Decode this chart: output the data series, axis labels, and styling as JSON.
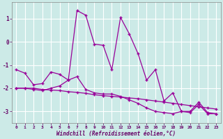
{
  "xlabel": "Windchill (Refroidissement éolien,°C)",
  "background_color": "#cceae7",
  "line_color": "#990099",
  "grid_color": "#ffffff",
  "xmin": -0.5,
  "xmax": 23.5,
  "ymin": -3.5,
  "ymax": 1.7,
  "yticks": [
    -3,
    -2,
    -1,
    0,
    1
  ],
  "xticks": [
    0,
    1,
    2,
    3,
    4,
    5,
    6,
    7,
    8,
    9,
    10,
    11,
    12,
    13,
    14,
    15,
    16,
    17,
    18,
    19,
    20,
    21,
    22,
    23
  ],
  "line1_x": [
    0,
    1,
    2,
    3,
    4,
    5,
    6,
    7,
    8,
    9,
    10,
    11,
    12,
    13,
    14,
    15,
    16,
    17,
    18,
    19,
    20,
    21,
    22,
    23
  ],
  "line1_y": [
    -1.2,
    -1.35,
    -1.85,
    -1.8,
    -1.3,
    -1.4,
    -1.65,
    1.35,
    1.15,
    -0.1,
    -0.15,
    -1.2,
    1.05,
    0.35,
    -0.5,
    -1.65,
    -1.2,
    -2.55,
    -2.2,
    -3.0,
    -3.0,
    -2.6,
    -3.05,
    -3.1
  ],
  "line2_x": [
    0,
    1,
    2,
    3,
    4,
    5,
    6,
    7,
    8,
    9,
    10,
    11,
    12,
    13,
    14,
    15,
    16,
    17,
    18,
    19,
    20,
    21,
    22,
    23
  ],
  "line2_y": [
    -2.0,
    -2.0,
    -2.0,
    -2.05,
    -2.08,
    -2.1,
    -2.15,
    -2.18,
    -2.22,
    -2.28,
    -2.32,
    -2.35,
    -2.38,
    -2.42,
    -2.45,
    -2.5,
    -2.55,
    -2.6,
    -2.65,
    -2.7,
    -2.75,
    -2.8,
    -2.85,
    -2.9
  ],
  "line3_x": [
    0,
    1,
    2,
    3,
    4,
    5,
    6,
    7,
    8,
    9,
    10,
    11,
    12,
    13,
    14,
    15,
    16,
    17,
    18,
    19,
    20,
    21,
    22,
    23
  ],
  "line3_y": [
    -2.0,
    -2.0,
    -2.05,
    -2.1,
    -2.0,
    -1.9,
    -1.65,
    -1.5,
    -2.05,
    -2.2,
    -2.25,
    -2.25,
    -2.35,
    -2.5,
    -2.65,
    -2.85,
    -3.0,
    -3.05,
    -3.1,
    -3.0,
    -3.05,
    -2.7,
    -3.1,
    -3.1
  ]
}
